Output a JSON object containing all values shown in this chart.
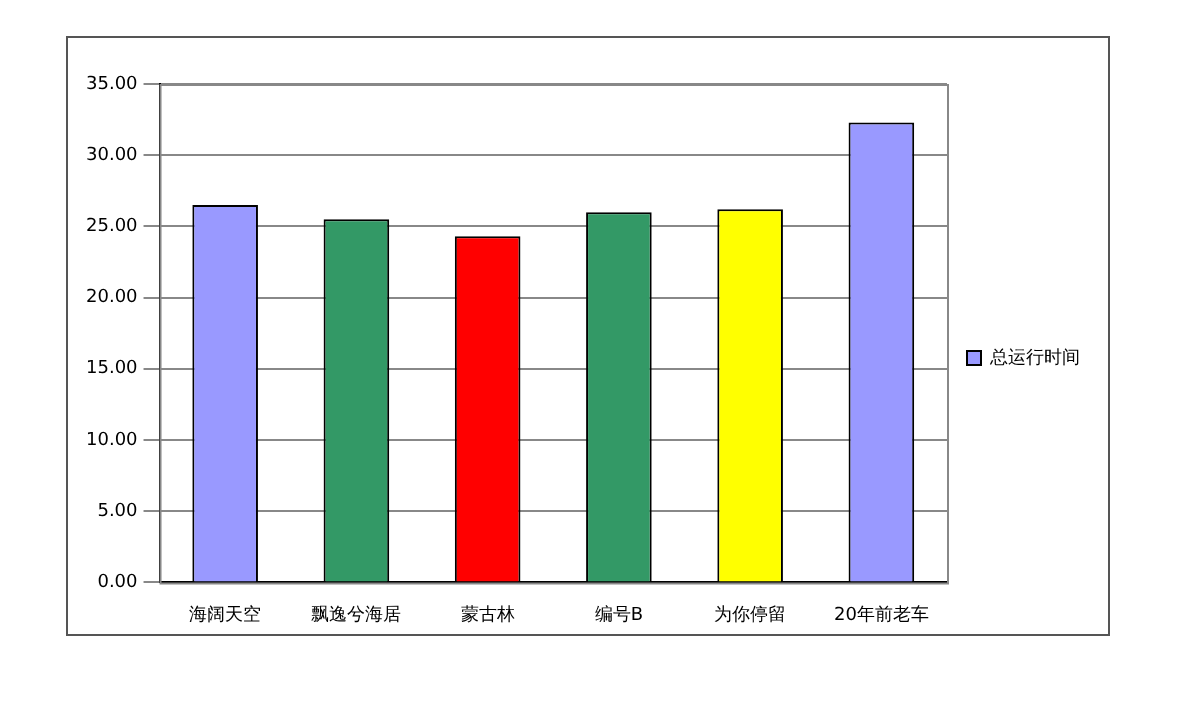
{
  "chart_data": {
    "type": "bar",
    "categories": [
      "海阔天空",
      "飘逸兮海居",
      "蒙古林",
      "编号B",
      "为你停留",
      "20年前老车"
    ],
    "series": [
      {
        "name": "总运行时间",
        "color": "#9999ff",
        "colors": [
          "#9999ff",
          "#339966",
          "#ff0000",
          "#339966",
          "#ffff00",
          "#9999ff"
        ],
        "values": [
          26.5,
          25.5,
          24.3,
          26.0,
          26.2,
          32.3
        ]
      }
    ],
    "ylim": [
      0,
      35
    ],
    "yticks": [
      {
        "value": 0,
        "label": "0.00"
      },
      {
        "value": 5,
        "label": "5.00"
      },
      {
        "value": 10,
        "label": "10.00"
      },
      {
        "value": 15,
        "label": "15.00"
      },
      {
        "value": 20,
        "label": "20.00"
      },
      {
        "value": 25,
        "label": "25.00"
      },
      {
        "value": 30,
        "label": "30.00"
      },
      {
        "value": 35,
        "label": "35.00"
      }
    ],
    "grid": "y",
    "legend": "right"
  }
}
